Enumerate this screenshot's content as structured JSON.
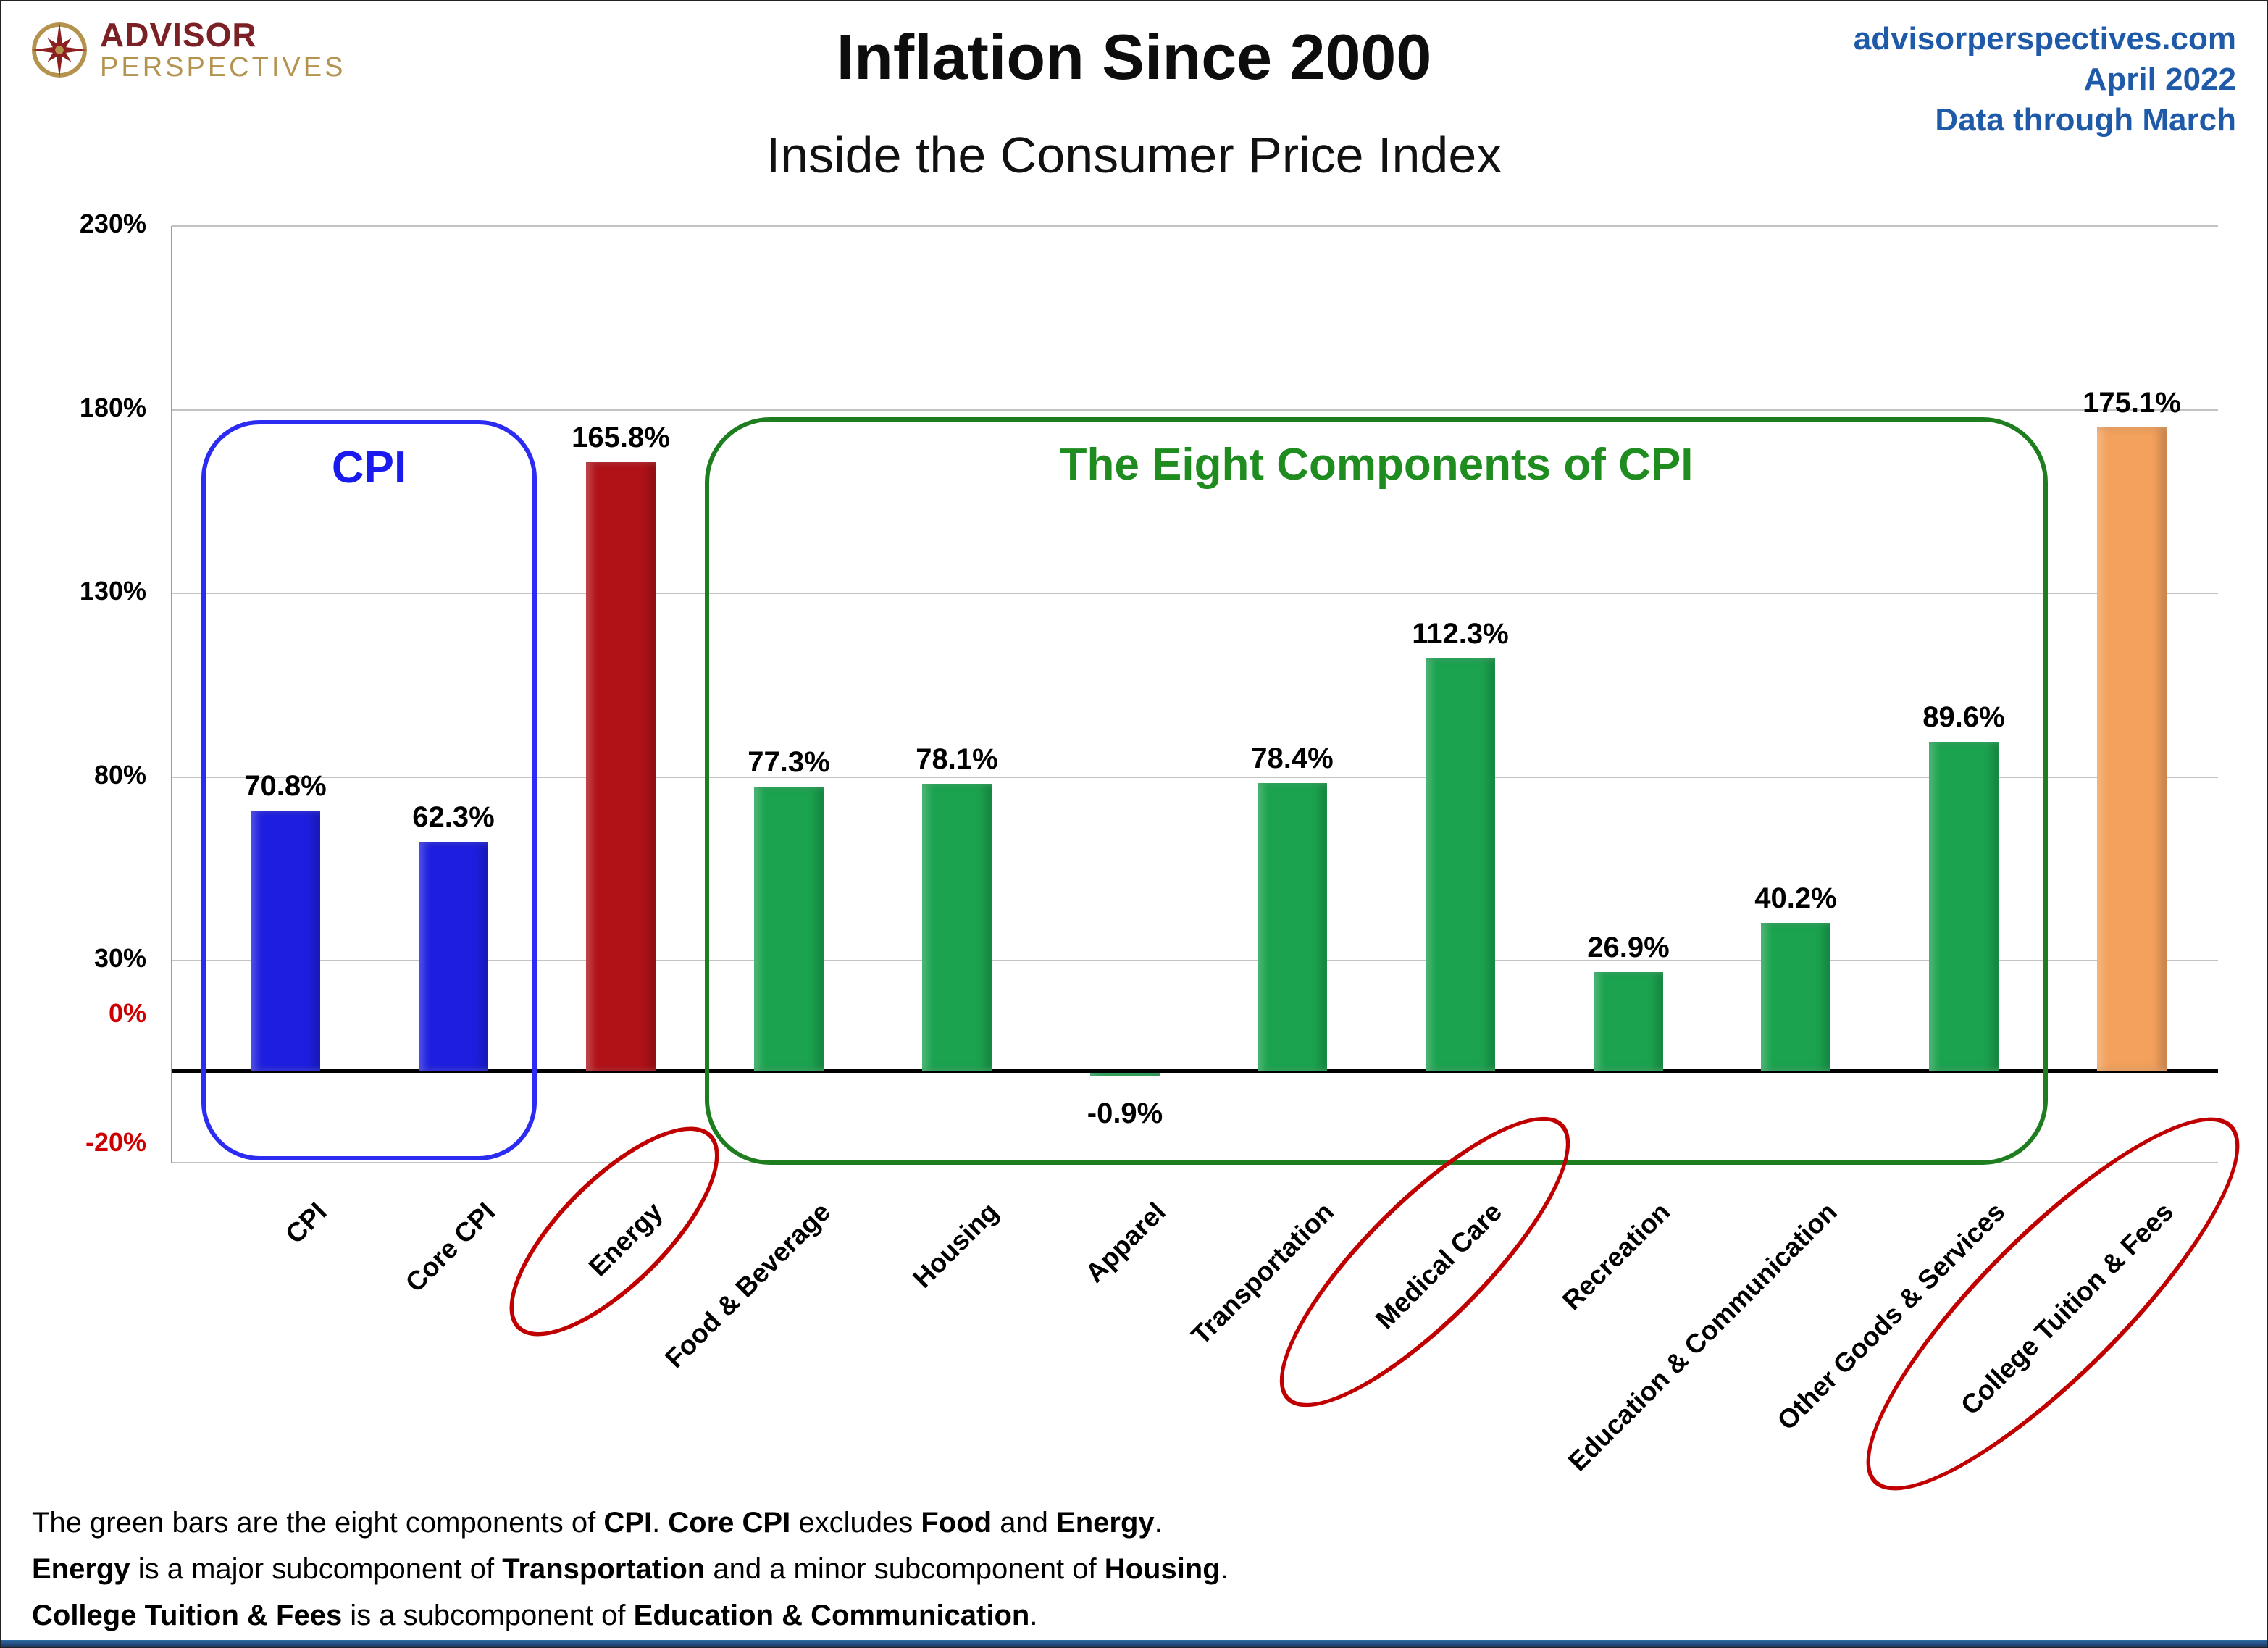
{
  "logo": {
    "line1": "ADVISOR",
    "line2": "PERSPECTIVES"
  },
  "source": {
    "site": "advisorperspectives.com",
    "date": "April 2022",
    "note": "Data through March",
    "color": "#1f5aa8"
  },
  "chart_data": {
    "type": "bar",
    "title": "Inflation Since 2000",
    "subtitle": "Inside the Consumer Price Index",
    "xlabel": "",
    "ylabel": "",
    "categories": [
      "CPI",
      "Core CPI",
      "Energy",
      "Food & Beverage",
      "Housing",
      "Apparel",
      "Transportation",
      "Medical Care",
      "Recreation",
      "Education & Communication",
      "Other Goods & Services",
      "College Tuition & Fees"
    ],
    "values": [
      70.8,
      62.3,
      165.8,
      77.3,
      78.1,
      -0.9,
      78.4,
      112.3,
      26.9,
      40.2,
      89.6,
      175.1
    ],
    "value_labels": [
      "70.8%",
      "62.3%",
      "165.8%",
      "77.3%",
      "78.1%",
      "-0.9%",
      "78.4%",
      "112.3%",
      "26.9%",
      "40.2%",
      "89.6%",
      "175.1%"
    ],
    "bar_colors": [
      "#1e1ee0",
      "#1e1ee0",
      "#b01218",
      "#1ba34f",
      "#1ba34f",
      "#1ba34f",
      "#1ba34f",
      "#1ba34f",
      "#1ba34f",
      "#1ba34f",
      "#1ba34f",
      "#f3a15c"
    ],
    "ylim": [
      -25,
      230
    ],
    "gridline_values": [
      230,
      180,
      130,
      80,
      30
    ],
    "grid": true,
    "legend": null,
    "yticks": [
      {
        "label": "230%",
        "value": 230,
        "color": "#000000"
      },
      {
        "label": "180%",
        "value": 180,
        "color": "#000000"
      },
      {
        "label": "130%",
        "value": 130,
        "color": "#000000"
      },
      {
        "label": "80%",
        "value": 80,
        "color": "#000000"
      },
      {
        "label": "30%",
        "value": 30,
        "color": "#000000"
      },
      {
        "label": "0%",
        "value": 0,
        "color": "#cc0000"
      },
      {
        "label": "-20%",
        "value": -20,
        "color": "#cc0000"
      }
    ],
    "annotations": {
      "cpi_box": {
        "label": "CPI",
        "stroke": "#2b2bf2",
        "text_color": "#1a1aee",
        "from_category": "CPI",
        "to_category": "Core CPI"
      },
      "components_box": {
        "label": "The Eight Components of CPI",
        "stroke": "#1e7d1e",
        "text_color": "#1e8c1e",
        "from_category": "Food & Beverage",
        "to_category": "Other Goods & Services"
      },
      "circled_categories": [
        "Energy",
        "Medical Care",
        "College Tuition & Fees"
      ],
      "circle_color": "#c00000"
    }
  },
  "footnotes": [
    [
      {
        "t": "The green bars are the eight components of "
      },
      {
        "t": "CPI",
        "b": true
      },
      {
        "t": ". "
      },
      {
        "t": "Core CPI",
        "b": true
      },
      {
        "t": " excludes "
      },
      {
        "t": "Food",
        "b": true
      },
      {
        "t": " and "
      },
      {
        "t": "Energy",
        "b": true
      },
      {
        "t": "."
      }
    ],
    [
      {
        "t": "Energy",
        "b": true
      },
      {
        "t": " is a major subcomponent of "
      },
      {
        "t": "Transportation",
        "b": true
      },
      {
        "t": " and a minor subcomponent of "
      },
      {
        "t": "Housing",
        "b": true
      },
      {
        "t": "."
      }
    ],
    [
      {
        "t": "College Tuition & Fees",
        "b": true
      },
      {
        "t": " is a subcomponent of "
      },
      {
        "t": "Education & Communication",
        "b": true
      },
      {
        "t": "."
      }
    ]
  ]
}
